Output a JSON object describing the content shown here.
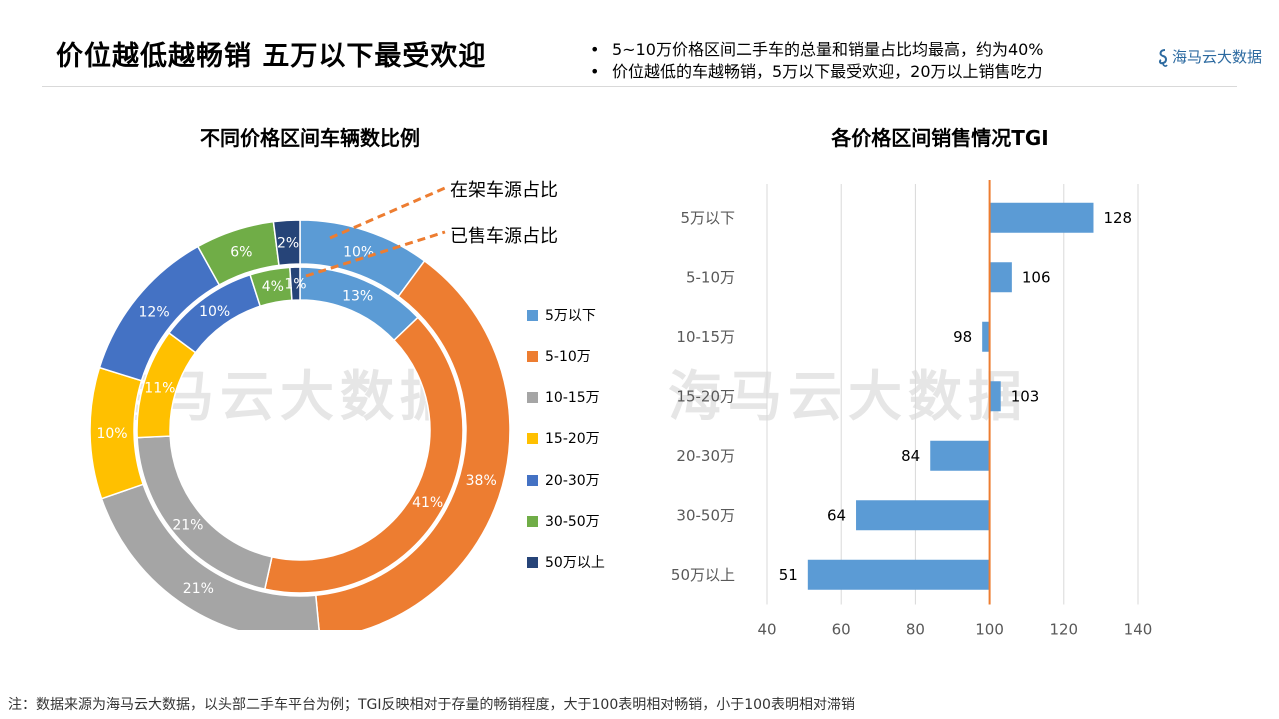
{
  "header": {
    "title": "价位越低越畅销 五万以下最受欢迎",
    "bullets": [
      "5~10万价格区间二手车的总量和销量占比均最高，约为40%",
      "价位越低的车越畅销，5万以下最受欢迎，20万以上销售吃力"
    ],
    "bullet_symbol": "•",
    "brand": "海马云大数据"
  },
  "watermark": "海马云大数据",
  "chart_data": [
    {
      "type": "donut",
      "title": "不同价格区间车辆数比例",
      "categories": [
        "5万以下",
        "5-10万",
        "10-15万",
        "15-20万",
        "20-30万",
        "30-50万",
        "50万以上"
      ],
      "colors": [
        "#5b9bd5",
        "#ed7d31",
        "#a5a5a5",
        "#ffc000",
        "#4472c4",
        "#70ad47",
        "#264478"
      ],
      "series": [
        {
          "name": "在架车源占比",
          "ring": "outer",
          "values": [
            10,
            38,
            21,
            10,
            12,
            6,
            2
          ],
          "labels": [
            "10%",
            "38%",
            "21%",
            "10%",
            "12%",
            "6%",
            "2%"
          ]
        },
        {
          "name": "已售车源占比",
          "ring": "inner",
          "values": [
            13,
            41,
            21,
            11,
            10,
            4,
            1
          ],
          "labels": [
            "13%",
            "41%",
            "21%",
            "11%",
            "10%",
            "4%",
            "1%"
          ]
        }
      ],
      "legend_position": "right"
    },
    {
      "type": "bar",
      "orientation": "horizontal",
      "title": "各价格区间销售情况TGI",
      "categories": [
        "5万以下",
        "5-10万",
        "10-15万",
        "15-20万",
        "20-30万",
        "30-50万",
        "50万以上"
      ],
      "values": [
        128,
        106,
        98,
        103,
        84,
        64,
        51
      ],
      "value_labels": [
        "128",
        "106",
        "98",
        "103",
        "84",
        "64",
        "51"
      ],
      "xlim": [
        40,
        140
      ],
      "x_ticks": [
        "40",
        "60",
        "80",
        "100",
        "120",
        "140"
      ],
      "baseline": 100,
      "bar_color": "#5b9bd5",
      "reference_line_color": "#ed7d31",
      "grid": true
    }
  ],
  "footnote": "注：数据来源为海马云大数据，以头部二手车平台为例；TGI反映相对于存量的畅销程度，大于100表明相对畅销，小于100表明相对滞销"
}
